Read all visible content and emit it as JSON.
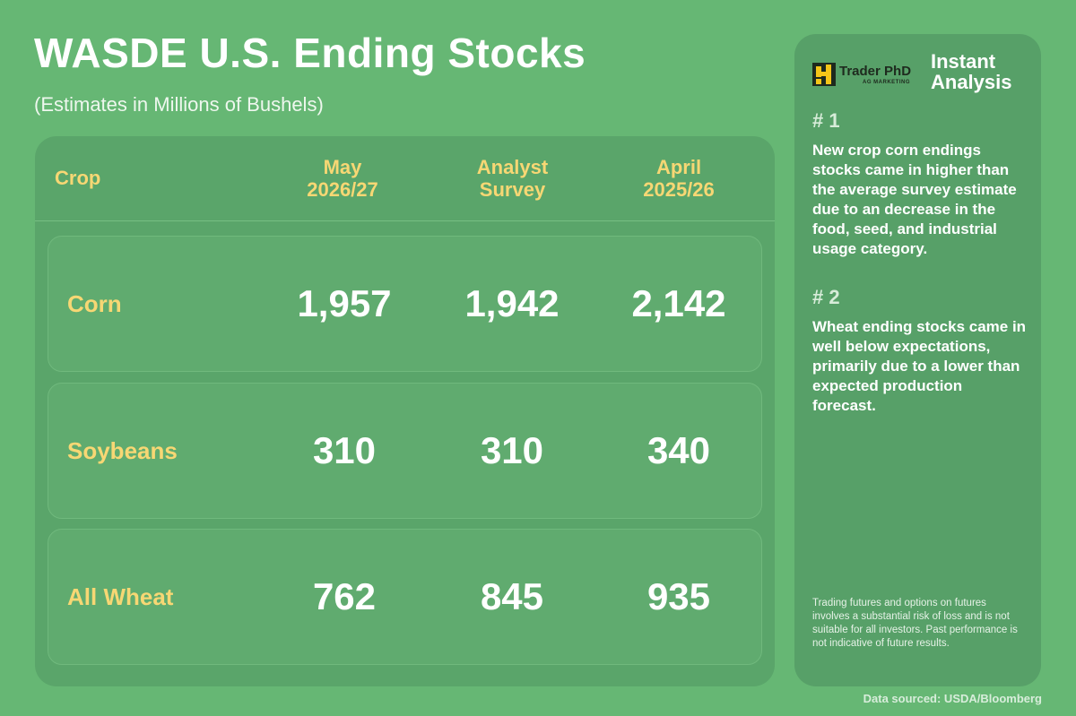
{
  "title": "WASDE U.S. Ending Stocks",
  "subtitle": "(Estimates in Millions of Bushels)",
  "table": {
    "headers": {
      "crop": "Crop",
      "col1": "May\n2026/27",
      "col2": "Analyst\nSurvey",
      "col3": "April\n2025/26"
    },
    "rows": [
      {
        "crop": "Corn",
        "may": "1,957",
        "survey": "1,942",
        "april": "2,142"
      },
      {
        "crop": "Soybeans",
        "may": "310",
        "survey": "310",
        "april": "340"
      },
      {
        "crop": "All Wheat",
        "may": "762",
        "survey": "845",
        "april": "935"
      }
    ]
  },
  "side": {
    "logo_text": "Trader PhD",
    "logo_sub": "AG MARKETING",
    "heading": "Instant\nAnalysis",
    "points": [
      {
        "number": "# 1",
        "text": "New crop corn endings stocks came in higher than the average survey estimate due to an decrease in the food, seed, and industrial usage category."
      },
      {
        "number": "# 2",
        "text": "Wheat ending stocks came in well below expectations, primarily due to a lower than expected production forecast."
      }
    ],
    "disclaimer": "Trading futures and options on futures involves a substantial risk of loss and is not suitable for all investors. Past performance is not indicative of future results."
  },
  "source": "Data sourced: USDA/Bloomberg",
  "colors": {
    "background": "#66b774",
    "panel": "#5aa56a",
    "accent_yellow": "#f7d774",
    "logo_yellow": "#f5c518"
  }
}
